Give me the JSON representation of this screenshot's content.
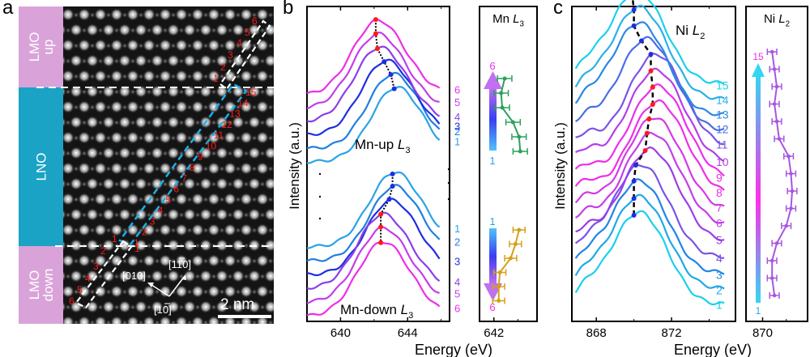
{
  "panels": {
    "a": {
      "letter": "a",
      "regions": [
        {
          "name": "lmo-up",
          "label_line1": "LMO",
          "label_line2": "up",
          "color": "#d9a3d9"
        },
        {
          "name": "lno",
          "label_line1": "LNO",
          "label_line2": "",
          "color": "#1aa3c4"
        },
        {
          "name": "lmo-down",
          "label_line1": "LMO",
          "label_line2": "down",
          "color": "#d9a3d9"
        }
      ],
      "up_box_numbers": [
        "1",
        "2",
        "3",
        "4",
        "5",
        "6"
      ],
      "lno_box_numbers": [
        "1",
        "2",
        "3",
        "4",
        "5",
        "6",
        "7",
        "8",
        "9",
        "10",
        "11",
        "12",
        "13",
        "14",
        "15"
      ],
      "down_box_numbers": [
        "1",
        "2",
        "3",
        "4",
        "5",
        "6"
      ],
      "directions": [
        "[010]",
        "[110]",
        "[1̅0]"
      ],
      "direction_labels": {
        "left": "[010]",
        "up": "[110]",
        "down": "[1",
        "down_bar": "1",
        "down_end": "0]"
      },
      "scale_bar": "2 nm",
      "number_color": "#ff1a1a",
      "up_box_color": "#ffffff",
      "lno_box_color": "#1ab0e8"
    },
    "b": {
      "letter": "b"
    },
    "c": {
      "letter": "c"
    }
  },
  "chart_data": [
    {
      "id": "b-main",
      "type": "line",
      "title": "",
      "xlabel": "Energy (eV)",
      "ylabel": "Intensity (a.u.)",
      "xlim": [
        638,
        646.5
      ],
      "xticks": [
        640,
        644
      ],
      "xminor_ticks": [
        642,
        646
      ],
      "annotations": [
        {
          "text": "Mn-up ",
          "italic": "L",
          "sub": "3"
        },
        {
          "text": "Mn-down ",
          "italic": "L",
          "sub": "3"
        }
      ],
      "group_up": {
        "name": "Mn-up",
        "peak_energies": [
          643.2,
          643.0,
          642.6,
          642.2,
          642.1,
          642.1
        ],
        "labels": [
          "1",
          "2",
          "3",
          "4",
          "5",
          "6"
        ],
        "colors": [
          "#29a3e8",
          "#1f7fe0",
          "#1f2ee0",
          "#8b3ee8",
          "#c43ee8",
          "#ee2ee8"
        ],
        "peak_marker_colors": [
          "#1f2ee0",
          "#1f2ee0",
          "#1f2ee0",
          "#ff1a1a",
          "#ff1a1a",
          "#ff1a1a"
        ]
      },
      "group_down": {
        "name": "Mn-down",
        "peak_energies": [
          643.1,
          643.1,
          642.9,
          642.4,
          642.4,
          642.4
        ],
        "labels": [
          "1",
          "2",
          "3",
          "4",
          "5",
          "6"
        ],
        "colors": [
          "#29a3e8",
          "#1f7fe0",
          "#1f2ee0",
          "#8b3ee8",
          "#c43ee8",
          "#ee2ee8"
        ],
        "peak_marker_colors": [
          "#1f2ee0",
          "#1f2ee0",
          "#1f2ee0",
          "#ff1a1a",
          "#ff1a1a",
          "#ff1a1a"
        ]
      },
      "ellipsis": "..."
    },
    {
      "id": "b-inset",
      "type": "scatter",
      "title_text": "Mn ",
      "title_italic": "L",
      "title_sub": "3",
      "xlabel": "Energy (eV)",
      "xlim": [
        641.4,
        643.8
      ],
      "xticks": [
        642
      ],
      "xminor_ticks": [
        643
      ],
      "series": [
        {
          "name": "Mn-up",
          "color": "#2ca05a",
          "layers": [
            "6",
            "5",
            "4",
            "3",
            "2",
            "1"
          ],
          "energies": [
            642.45,
            642.3,
            642.35,
            642.8,
            643.05,
            643.1
          ],
          "error": 0.3
        },
        {
          "name": "Mn-down",
          "color": "#d4a017",
          "layers": [
            "1",
            "2",
            "3",
            "4",
            "5",
            "6"
          ],
          "energies": [
            643.05,
            642.9,
            642.7,
            642.25,
            642.2,
            642.2
          ],
          "error": 0.25
        }
      ],
      "arrow_up": {
        "from": "1",
        "to": "6"
      },
      "arrow_down": {
        "from": "1",
        "to": "6"
      }
    },
    {
      "id": "c-main",
      "type": "line",
      "title": "",
      "annotation_text": "Ni ",
      "annotation_italic": "L",
      "annotation_sub": "2",
      "xlabel": "Energy (eV)",
      "ylabel": "Intensity (a.u.)",
      "xlim": [
        866.7,
        875.4
      ],
      "xticks": [
        868,
        872
      ],
      "xminor_ticks": [
        870,
        874
      ],
      "peak_energies": [
        870.0,
        870.0,
        870.0,
        870.1,
        870.6,
        870.7,
        870.8,
        871.0,
        871.0,
        870.9,
        870.9,
        870.4,
        870.0,
        870.0,
        869.9
      ],
      "labels": [
        "1",
        "2",
        "3",
        "4",
        "5",
        "6",
        "7",
        "8",
        "9",
        "10",
        "11",
        "12",
        "13",
        "14",
        "15"
      ],
      "colors": [
        "#1ad0ee",
        "#1fa8e6",
        "#2084e6",
        "#7a54e6",
        "#9a3ee8",
        "#c43ee8",
        "#d438e8",
        "#ee2ee8",
        "#ee2ee8",
        "#b43ee8",
        "#7a54e6",
        "#4a6de6",
        "#2a88e6",
        "#2ab0e6",
        "#1ad0ee"
      ],
      "peak_marker_colors": [
        "#1f2ee0",
        "#1f2ee0",
        "#1f2ee0",
        "#1f2ee0",
        "#ff1a1a",
        "#ff1a1a",
        "#ff1a1a",
        "#ff1a1a",
        "#ff1a1a",
        "#ff1a1a",
        "#1f2ee0",
        "#1f2ee0",
        "#1f2ee0",
        "#1f2ee0",
        "#1f2ee0"
      ]
    },
    {
      "id": "c-inset",
      "type": "scatter",
      "title_text": "Ni ",
      "title_italic": "L",
      "title_sub": "2",
      "xlabel": "Energy (eV)",
      "xlim": [
        869.3,
        871.9
      ],
      "xticks": [
        870
      ],
      "xminor_ticks": [
        871
      ],
      "series": [
        {
          "name": "Ni",
          "color": "#a855e0",
          "layers": [
            "15",
            "14",
            "13",
            "12",
            "11",
            "10",
            "9",
            "8",
            "7",
            "6",
            "5",
            "4",
            "3",
            "2",
            "1"
          ],
          "energies": [
            870.4,
            870.5,
            870.6,
            870.5,
            870.6,
            870.7,
            871.1,
            871.2,
            871.25,
            871.2,
            871.0,
            870.6,
            870.4,
            870.4,
            870.5
          ],
          "error": 0.2
        }
      ],
      "arrow": {
        "from": "1",
        "to": "15"
      }
    }
  ]
}
